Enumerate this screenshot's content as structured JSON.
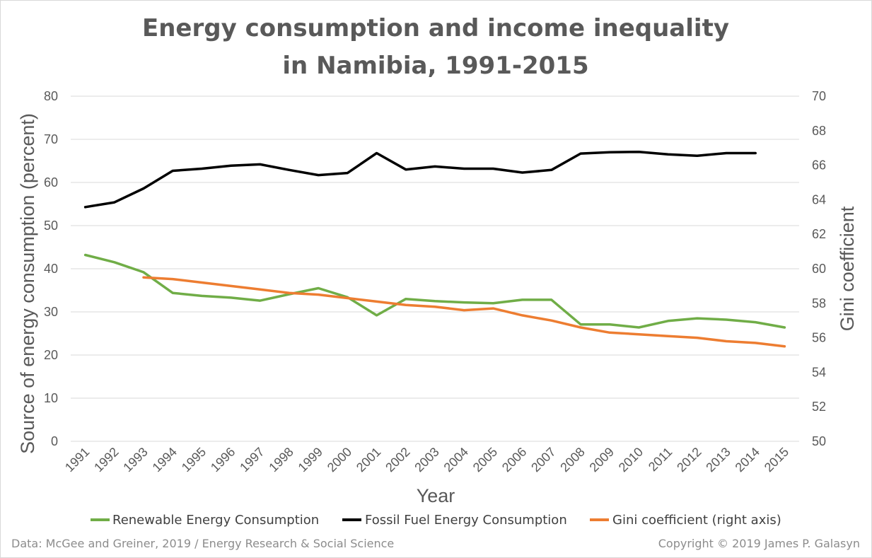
{
  "chart_data": {
    "type": "line",
    "title": "Energy consumption and income inequality in Namibia, 1991-2015",
    "title_lines": [
      "Energy consumption and income inequality",
      "in Namibia, 1991-2015"
    ],
    "xlabel": "Year",
    "ylabel": "Source of energy consumption (percent)",
    "y2label": "Gini coefficient",
    "x": [
      "1991",
      "1992",
      "1993",
      "1994",
      "1995",
      "1996",
      "1997",
      "1998",
      "1999",
      "2000",
      "2001",
      "2002",
      "2003",
      "2004",
      "2005",
      "2006",
      "2007",
      "2008",
      "2009",
      "2010",
      "2011",
      "2012",
      "2013",
      "2014",
      "2015"
    ],
    "ylim": [
      0,
      80
    ],
    "yticks": [
      0,
      10,
      20,
      30,
      40,
      50,
      60,
      70,
      80
    ],
    "y2lim": [
      50,
      70
    ],
    "y2ticks": [
      50,
      52,
      54,
      56,
      58,
      60,
      62,
      64,
      66,
      68,
      70
    ],
    "grid": true,
    "legend_position": "bottom",
    "series": [
      {
        "name": "Renewable Energy Consumption",
        "axis": "left",
        "color": "#70ad47",
        "values": [
          43.2,
          41.5,
          39.2,
          34.4,
          33.7,
          33.3,
          32.6,
          34.1,
          35.5,
          33.4,
          29.2,
          33.0,
          32.5,
          32.2,
          32.0,
          32.8,
          32.8,
          27.1,
          27.1,
          26.4,
          27.9,
          28.5,
          28.2,
          27.6,
          26.4
        ]
      },
      {
        "name": "Fossil Fuel Energy Consumption",
        "axis": "left",
        "color": "#000000",
        "values": [
          54.3,
          55.4,
          58.6,
          62.7,
          63.2,
          63.9,
          64.2,
          62.9,
          61.7,
          62.2,
          66.8,
          63.0,
          63.7,
          63.2,
          63.2,
          62.3,
          62.9,
          66.7,
          67.0,
          67.1,
          66.5,
          66.2,
          66.8,
          66.8,
          null
        ]
      },
      {
        "name": "Gini coefficient (right axis)",
        "axis": "right",
        "color": "#ed7d31",
        "values": [
          null,
          null,
          59.5,
          59.4,
          59.2,
          59.0,
          58.8,
          58.6,
          58.5,
          58.3,
          58.1,
          57.9,
          57.8,
          57.6,
          57.7,
          57.3,
          57.0,
          56.6,
          56.3,
          56.2,
          56.1,
          56.0,
          55.8,
          55.7,
          55.5
        ]
      }
    ]
  },
  "footer": {
    "source": "Data: McGee and Greiner, 2019 / Energy Research & Social Science",
    "copyright": "Copyright © 2019 James P. Galasyn"
  }
}
